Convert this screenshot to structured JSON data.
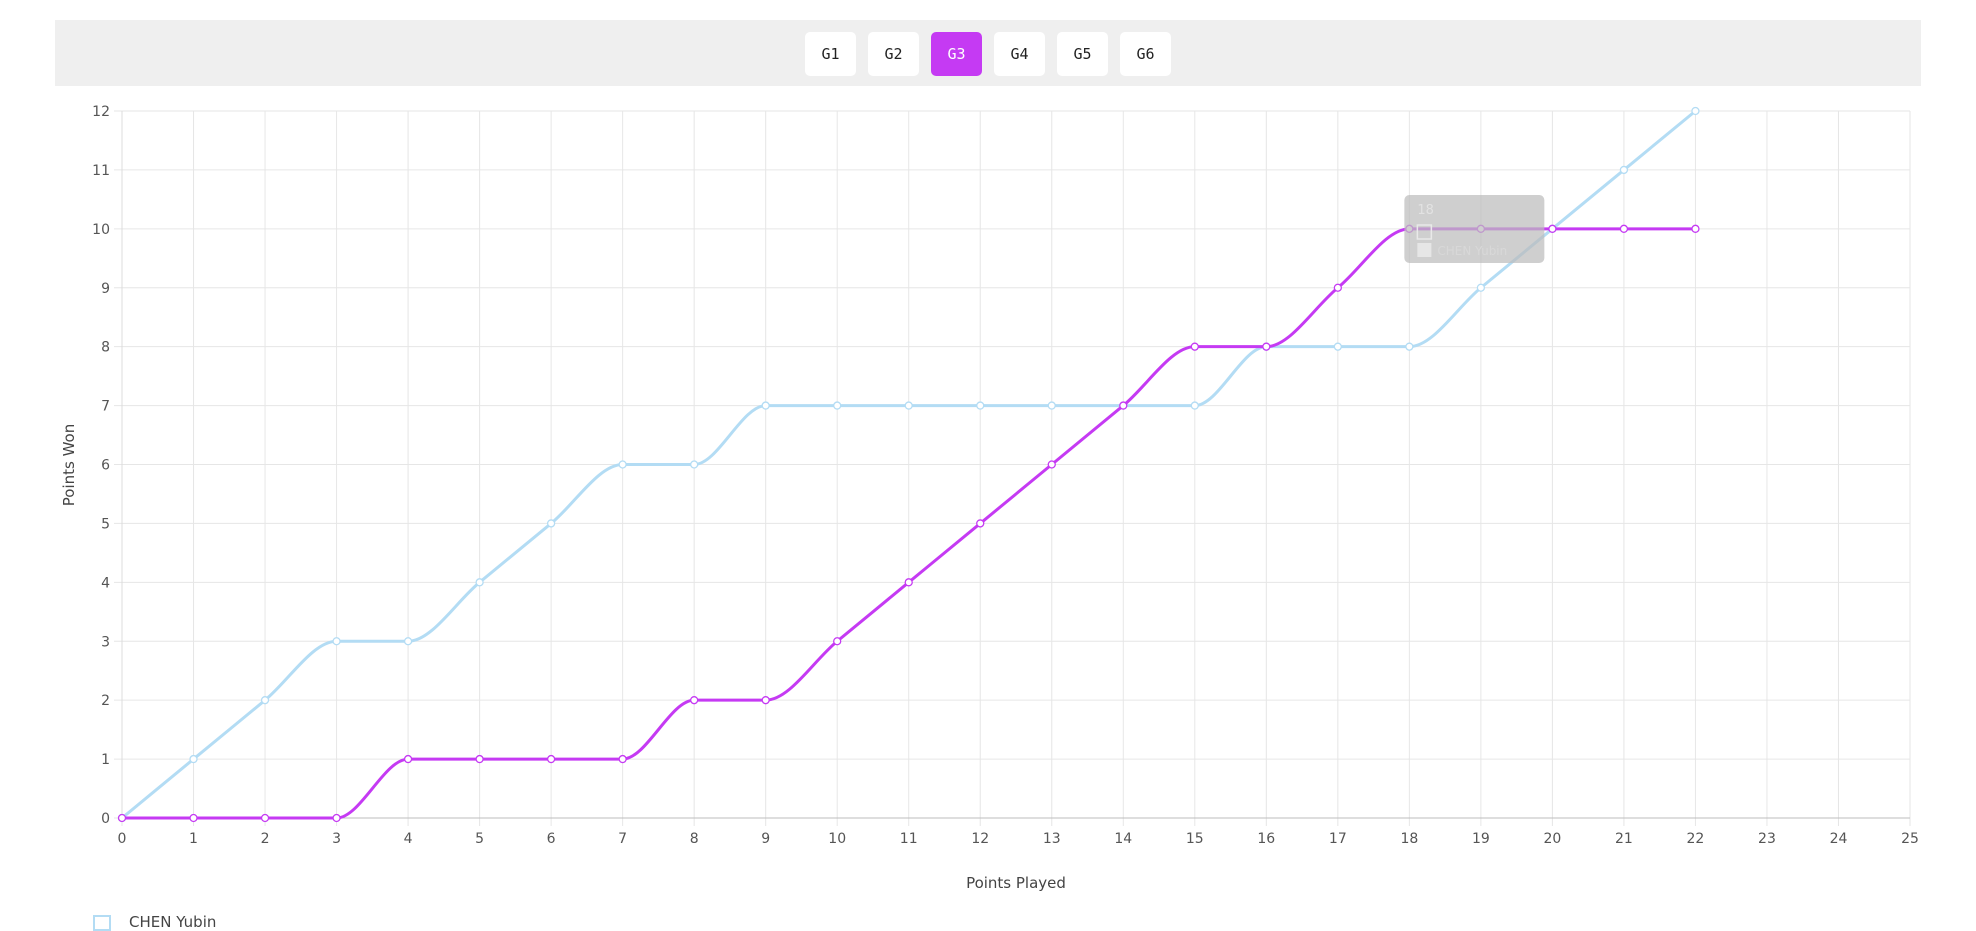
{
  "tabs": [
    {
      "label": "G1",
      "active": false
    },
    {
      "label": "G2",
      "active": false
    },
    {
      "label": "G3",
      "active": true
    },
    {
      "label": "G4",
      "active": false
    },
    {
      "label": "G5",
      "active": false
    },
    {
      "label": "G6",
      "active": false
    }
  ],
  "colors": {
    "accent": "#c53af3",
    "series_a": "#b3dcf4",
    "series_b": "#c53af3",
    "tab_bar_bg": "#efefef",
    "grid": "#e6e6e6",
    "tooltip_bg": "#bdbdbd"
  },
  "chart_data": {
    "type": "line",
    "xlabel": "Points Played",
    "ylabel": "Points Won",
    "xlim": [
      0,
      25
    ],
    "ylim": [
      0,
      12
    ],
    "x_ticks": [
      0,
      1,
      2,
      3,
      4,
      5,
      6,
      7,
      8,
      9,
      10,
      11,
      12,
      13,
      14,
      15,
      16,
      17,
      18,
      19,
      20,
      21,
      22,
      23,
      24,
      25
    ],
    "y_ticks": [
      0,
      1,
      2,
      3,
      4,
      5,
      6,
      7,
      8,
      9,
      10,
      11,
      12
    ],
    "grid": true,
    "smooth": true,
    "series": [
      {
        "name": "CHEN Yubin",
        "color": "#b3dcf4",
        "x": [
          0,
          1,
          2,
          3,
          4,
          5,
          6,
          7,
          8,
          9,
          10,
          11,
          12,
          13,
          14,
          15,
          16,
          17,
          18,
          19,
          20,
          21,
          22
        ],
        "y": [
          0,
          1,
          2,
          3,
          3,
          4,
          5,
          6,
          6,
          7,
          7,
          7,
          7,
          7,
          7,
          7,
          8,
          8,
          8,
          9,
          10,
          11,
          12
        ]
      },
      {
        "name": "",
        "color": "#c53af3",
        "x": [
          0,
          1,
          2,
          3,
          4,
          5,
          6,
          7,
          8,
          9,
          10,
          11,
          12,
          13,
          14,
          15,
          16,
          17,
          18,
          19,
          20,
          21,
          22
        ],
        "y": [
          0,
          0,
          0,
          0,
          1,
          1,
          1,
          1,
          2,
          2,
          3,
          4,
          5,
          6,
          7,
          8,
          8,
          9,
          10,
          10,
          10,
          10,
          10
        ]
      }
    ],
    "tooltip": {
      "x": 18,
      "title": "18",
      "lines": [
        "",
        "CHEN Yubin"
      ]
    }
  }
}
